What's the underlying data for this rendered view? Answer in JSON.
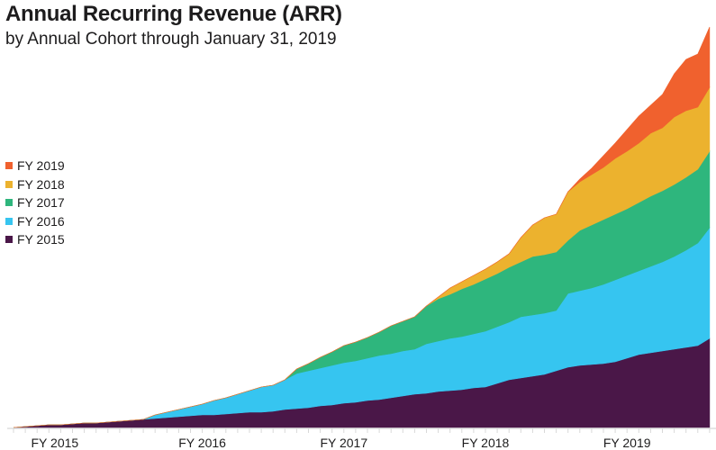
{
  "chart_data": {
    "type": "area",
    "stacked": true,
    "title": "Annual Recurring Revenue (ARR)",
    "subtitle": "by Annual Cohort through January 31, 2019",
    "x_unit": "month",
    "x_tick_labels": [
      {
        "label": "FY 2015",
        "month_index": 3.5
      },
      {
        "label": "FY 2016",
        "month_index": 16
      },
      {
        "label": "FY 2017",
        "month_index": 28
      },
      {
        "label": "FY 2018",
        "month_index": 40
      },
      {
        "label": "FY 2019",
        "month_index": 52
      }
    ],
    "y_axis_shown": false,
    "grid": false,
    "legend_placement": "left",
    "series": [
      {
        "name": "FY 2015",
        "color": "#4a1748",
        "values": [
          0,
          1,
          2,
          3,
          3,
          4,
          5,
          5,
          6,
          7,
          8,
          9,
          10,
          11,
          12,
          13,
          14,
          14,
          15,
          16,
          17,
          17,
          18,
          20,
          21,
          22,
          24,
          25,
          27,
          28,
          30,
          31,
          33,
          35,
          37,
          38,
          40,
          41,
          42,
          44,
          45,
          49,
          53,
          55,
          57,
          59,
          63,
          67,
          69,
          70,
          71,
          73,
          77,
          81,
          83,
          85,
          87,
          89,
          91,
          99
        ]
      },
      {
        "name": "FY 2016",
        "color": "#36c5f0",
        "values": [
          0,
          0,
          0,
          0,
          0,
          0,
          0,
          0,
          0,
          0,
          0,
          0,
          4,
          6,
          8,
          10,
          12,
          16,
          18,
          21,
          24,
          28,
          29,
          33,
          39,
          41,
          42,
          44,
          45,
          46,
          47,
          49,
          49,
          50,
          50,
          55,
          56,
          58,
          59,
          60,
          62,
          63,
          64,
          68,
          68,
          68,
          67,
          82,
          83,
          85,
          88,
          91,
          92,
          93,
          96,
          99,
          103,
          108,
          114,
          123
        ]
      },
      {
        "name": "FY 2017",
        "color": "#2eb67d",
        "values": [
          0,
          0,
          0,
          0,
          0,
          0,
          0,
          0,
          0,
          0,
          0,
          0,
          0,
          0,
          0,
          0,
          0,
          0,
          0,
          0,
          0,
          0,
          0,
          0,
          5,
          8,
          12,
          15,
          19,
          21,
          23,
          26,
          31,
          33,
          36,
          42,
          47,
          49,
          53,
          55,
          58,
          59,
          61,
          61,
          65,
          65,
          65,
          59,
          67,
          70,
          72,
          73,
          74,
          76,
          78,
          79,
          80,
          81,
          82,
          85
        ]
      },
      {
        "name": "FY 2018",
        "color": "#ecb22e",
        "values": [
          0,
          0,
          0,
          0,
          0,
          0,
          0,
          0,
          0,
          0,
          0,
          0,
          0,
          0,
          0,
          0,
          0,
          0,
          0,
          0,
          0,
          0,
          0,
          0,
          0,
          0,
          0,
          0,
          0,
          0,
          0,
          0,
          0,
          0,
          0,
          0,
          2,
          7,
          8,
          10,
          11,
          13,
          15,
          27,
          35,
          41,
          42,
          54,
          54,
          56,
          58,
          62,
          64,
          66,
          70,
          70,
          75,
          74,
          69,
          71
        ]
      },
      {
        "name": "FY 2019",
        "color": "#f0612e",
        "values": [
          0,
          0,
          0,
          0,
          0,
          0,
          0,
          0,
          0,
          0,
          0,
          0,
          0,
          0,
          0,
          0,
          0,
          0,
          0,
          0,
          0,
          0,
          0,
          0,
          0,
          0,
          0,
          0,
          0,
          0,
          0,
          0,
          0,
          0,
          0,
          0,
          0,
          0,
          0,
          0,
          0,
          0,
          0,
          0,
          0,
          0,
          0,
          0,
          3,
          7,
          13,
          17,
          24,
          30,
          31,
          37,
          48,
          57,
          59,
          67
        ]
      }
    ]
  }
}
